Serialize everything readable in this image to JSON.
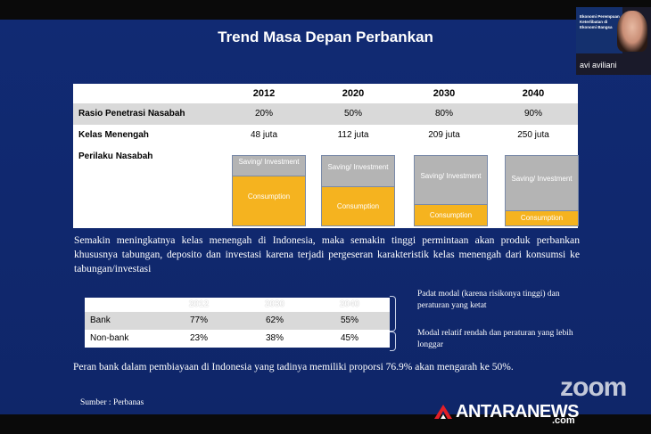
{
  "slide": {
    "title": "Trend Masa Depan Perbankan",
    "table1": {
      "years": [
        "2012",
        "2020",
        "2030",
        "2040"
      ],
      "rows": [
        {
          "label": "Rasio Penetrasi Nasabah",
          "values": [
            "20%",
            "50%",
            "80%",
            "90%"
          ]
        },
        {
          "label": "Kelas Menengah",
          "values": [
            "48 juta",
            "112 juta",
            "209 juta",
            "250 juta"
          ]
        }
      ],
      "behavior_label": "Perilaku Nasabah",
      "saving_label": "Saving/ Investment",
      "consumption_label": "Consumption",
      "consumption_share": [
        0.7,
        0.55,
        0.3,
        0.2
      ]
    },
    "paragraph": "Semakin meningkatnya kelas menengah di Indonesia, maka semakin tinggi permintaan akan produk perbankan khususnya tabungan, deposito dan investasi karena terjadi pergeseran karakteristik kelas menengah dari konsumsi ke tabungan/investasi",
    "table2": {
      "years": [
        "2012",
        "2030",
        "2040"
      ],
      "rows": [
        {
          "label": "Bank",
          "values": [
            "77%",
            "62%",
            "55%"
          ]
        },
        {
          "label": "Non-bank",
          "values": [
            "23%",
            "38%",
            "45%"
          ]
        }
      ]
    },
    "notes": {
      "bank": "Padat modal (karena risikonya tinggi) dan peraturan yang ketat",
      "nonbank": "Modal relatif rendah dan peraturan yang lebih longgar"
    },
    "conclusion": "Peran bank dalam pembiayaan di Indonesia yang tadinya memiliki proporsi 76.9% akan mengarah ke 50%.",
    "source": "Sumber : Perbanas"
  },
  "video": {
    "participant_name": "avi aviliani",
    "mini_slide_lines": [
      "Ekonomi Perempuan",
      "Keterlibatan di",
      "Ekonomi Bangsa"
    ]
  },
  "watermarks": {
    "zoom": "zoom",
    "antara": "ANTARANEWS",
    "antara_suffix": ".com"
  }
}
